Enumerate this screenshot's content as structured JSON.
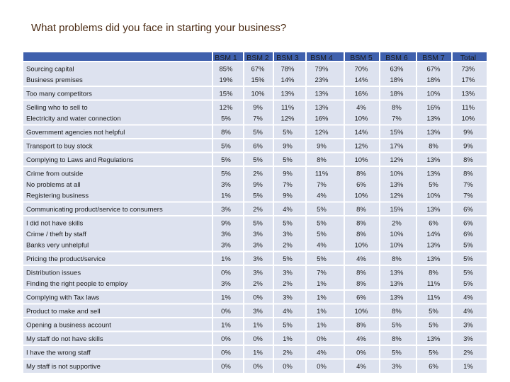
{
  "title": "What problems did you face in starting your business?",
  "colors": {
    "header_bg": "#3f60ad",
    "row_bg": "#dde2ef",
    "text": "#1a1a1a",
    "header_text": "#ffffff"
  },
  "chart_data": {
    "type": "table",
    "columns": [
      "BSM 1",
      "BSM 2",
      "BSM 3",
      "BSM 4",
      "BSM 5",
      "BSM 6",
      "BSM 7",
      "Total"
    ],
    "groups": [
      [
        {
          "label": "Sourcing capital",
          "values": [
            "85%",
            "67%",
            "78%",
            "79%",
            "70%",
            "63%",
            "67%",
            "73%"
          ]
        },
        {
          "label": "Business premises",
          "values": [
            "19%",
            "15%",
            "14%",
            "23%",
            "14%",
            "18%",
            "18%",
            "17%"
          ]
        }
      ],
      [
        {
          "label": "Too many competitors",
          "values": [
            "15%",
            "10%",
            "13%",
            "13%",
            "16%",
            "18%",
            "10%",
            "13%"
          ]
        }
      ],
      [
        {
          "label": "Selling who to sell to",
          "values": [
            "12%",
            "9%",
            "11%",
            "13%",
            "4%",
            "8%",
            "16%",
            "11%"
          ]
        },
        {
          "label": "Electricity and water connection",
          "values": [
            "5%",
            "7%",
            "12%",
            "16%",
            "10%",
            "7%",
            "13%",
            "10%"
          ]
        }
      ],
      [
        {
          "label": "Government agencies not helpful",
          "values": [
            "8%",
            "5%",
            "5%",
            "12%",
            "14%",
            "15%",
            "13%",
            "9%"
          ]
        }
      ],
      [
        {
          "label": "Transport to buy stock",
          "values": [
            "5%",
            "6%",
            "9%",
            "9%",
            "12%",
            "17%",
            "8%",
            "9%"
          ]
        }
      ],
      [
        {
          "label": "Complying to Laws and Regulations",
          "values": [
            "5%",
            "5%",
            "5%",
            "8%",
            "10%",
            "12%",
            "13%",
            "8%"
          ]
        }
      ],
      [
        {
          "label": "Crime from outside",
          "values": [
            "5%",
            "2%",
            "9%",
            "11%",
            "8%",
            "10%",
            "13%",
            "8%"
          ]
        },
        {
          "label": "No problems at all",
          "values": [
            "3%",
            "9%",
            "7%",
            "7%",
            "6%",
            "13%",
            "5%",
            "7%"
          ]
        },
        {
          "label": "Registering business",
          "values": [
            "1%",
            "5%",
            "9%",
            "4%",
            "10%",
            "12%",
            "10%",
            "7%"
          ]
        }
      ],
      [
        {
          "label": "Communicating product/service to consumers",
          "values": [
            "3%",
            "2%",
            "4%",
            "5%",
            "8%",
            "15%",
            "13%",
            "6%"
          ]
        }
      ],
      [
        {
          "label": "I did not have skills",
          "values": [
            "9%",
            "5%",
            "5%",
            "5%",
            "8%",
            "2%",
            "6%",
            "6%"
          ]
        },
        {
          "label": "Crime / theft by staff",
          "values": [
            "3%",
            "3%",
            "3%",
            "5%",
            "8%",
            "10%",
            "14%",
            "6%"
          ]
        },
        {
          "label": "Banks very unhelpful",
          "values": [
            "3%",
            "3%",
            "2%",
            "4%",
            "10%",
            "10%",
            "13%",
            "5%"
          ]
        }
      ],
      [
        {
          "label": "Pricing the product/service",
          "values": [
            "1%",
            "3%",
            "5%",
            "5%",
            "4%",
            "8%",
            "13%",
            "5%"
          ]
        }
      ],
      [
        {
          "label": "Distribution issues",
          "values": [
            "0%",
            "3%",
            "3%",
            "7%",
            "8%",
            "13%",
            "8%",
            "5%"
          ]
        },
        {
          "label": "Finding the right people to employ",
          "values": [
            "3%",
            "2%",
            "2%",
            "1%",
            "8%",
            "13%",
            "11%",
            "5%"
          ]
        }
      ],
      [
        {
          "label": "Complying with Tax laws",
          "values": [
            "1%",
            "0%",
            "3%",
            "1%",
            "6%",
            "13%",
            "11%",
            "4%"
          ]
        }
      ],
      [
        {
          "label": "Product to make and sell",
          "values": [
            "0%",
            "3%",
            "4%",
            "1%",
            "10%",
            "8%",
            "5%",
            "4%"
          ]
        }
      ],
      [
        {
          "label": "Opening a business account",
          "values": [
            "1%",
            "1%",
            "5%",
            "1%",
            "8%",
            "5%",
            "5%",
            "3%"
          ]
        }
      ],
      [
        {
          "label": "My staff do not have skills",
          "values": [
            "0%",
            "0%",
            "1%",
            "0%",
            "4%",
            "8%",
            "13%",
            "3%"
          ]
        }
      ],
      [
        {
          "label": "I have the wrong staff",
          "values": [
            "0%",
            "1%",
            "2%",
            "4%",
            "0%",
            "5%",
            "5%",
            "2%"
          ]
        }
      ],
      [
        {
          "label": "My staff is not supportive",
          "values": [
            "0%",
            "0%",
            "0%",
            "0%",
            "4%",
            "3%",
            "6%",
            "1%"
          ]
        }
      ]
    ]
  }
}
